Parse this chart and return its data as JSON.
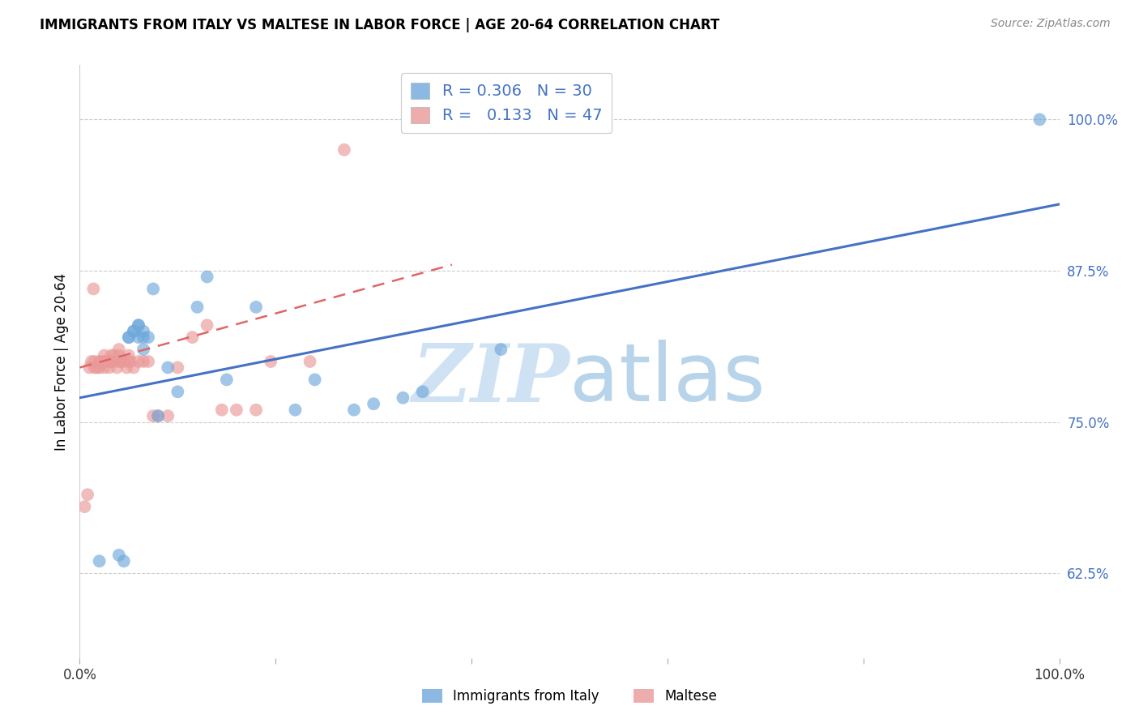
{
  "title": "IMMIGRANTS FROM ITALY VS MALTESE IN LABOR FORCE | AGE 20-64 CORRELATION CHART",
  "source": "Source: ZipAtlas.com",
  "ylabel": "In Labor Force | Age 20-64",
  "xlim": [
    0.0,
    1.0
  ],
  "ylim": [
    0.555,
    1.045
  ],
  "yticks": [
    0.625,
    0.75,
    0.875,
    1.0
  ],
  "ytick_labels": [
    "62.5%",
    "75.0%",
    "87.5%",
    "100.0%"
  ],
  "xticks": [
    0.0,
    0.2,
    0.4,
    0.6,
    0.8,
    1.0
  ],
  "xtick_labels": [
    "0.0%",
    "",
    "",
    "",
    "",
    "100.0%"
  ],
  "legend_R_blue": "0.306",
  "legend_N_blue": "30",
  "legend_R_pink": "0.133",
  "legend_N_pink": "47",
  "blue_color": "#6fa8dc",
  "pink_color": "#ea9999",
  "blue_line_color": "#4472c4",
  "pink_line_color": "#e06666",
  "blue_line_x0": 0.0,
  "blue_line_y0": 0.77,
  "blue_line_x1": 1.0,
  "blue_line_y1": 0.93,
  "pink_line_x0": 0.0,
  "pink_line_y0": 0.795,
  "pink_line_x1": 0.38,
  "pink_line_y1": 0.88,
  "watermark_zip": "ZIP",
  "watermark_atlas": "atlas",
  "watermark_color": "#cfe2f3",
  "blue_scatter_x": [
    0.02,
    0.04,
    0.045,
    0.05,
    0.055,
    0.06,
    0.06,
    0.065,
    0.065,
    0.07,
    0.075,
    0.08,
    0.09,
    0.1,
    0.12,
    0.13,
    0.15,
    0.18,
    0.22,
    0.24,
    0.28,
    0.3,
    0.33,
    0.35,
    0.43,
    0.98,
    0.05,
    0.055,
    0.06,
    0.065
  ],
  "blue_scatter_y": [
    0.635,
    0.64,
    0.635,
    0.82,
    0.825,
    0.82,
    0.83,
    0.81,
    0.825,
    0.82,
    0.86,
    0.755,
    0.795,
    0.775,
    0.845,
    0.87,
    0.785,
    0.845,
    0.76,
    0.785,
    0.76,
    0.765,
    0.77,
    0.775,
    0.81,
    1.0,
    0.82,
    0.825,
    0.83,
    0.82
  ],
  "pink_scatter_x": [
    0.005,
    0.008,
    0.01,
    0.012,
    0.015,
    0.015,
    0.018,
    0.02,
    0.02,
    0.022,
    0.025,
    0.025,
    0.025,
    0.028,
    0.03,
    0.03,
    0.032,
    0.032,
    0.035,
    0.035,
    0.038,
    0.04,
    0.04,
    0.04,
    0.042,
    0.045,
    0.048,
    0.05,
    0.05,
    0.052,
    0.055,
    0.06,
    0.065,
    0.07,
    0.075,
    0.08,
    0.09,
    0.1,
    0.115,
    0.13,
    0.145,
    0.18,
    0.195,
    0.235,
    0.27,
    0.014,
    0.16
  ],
  "pink_scatter_y": [
    0.68,
    0.69,
    0.795,
    0.8,
    0.795,
    0.8,
    0.795,
    0.8,
    0.795,
    0.8,
    0.795,
    0.8,
    0.805,
    0.8,
    0.795,
    0.8,
    0.8,
    0.805,
    0.8,
    0.805,
    0.795,
    0.8,
    0.805,
    0.81,
    0.8,
    0.8,
    0.795,
    0.8,
    0.805,
    0.8,
    0.795,
    0.8,
    0.8,
    0.8,
    0.755,
    0.755,
    0.755,
    0.795,
    0.82,
    0.83,
    0.76,
    0.76,
    0.8,
    0.8,
    0.975,
    0.86,
    0.76
  ]
}
